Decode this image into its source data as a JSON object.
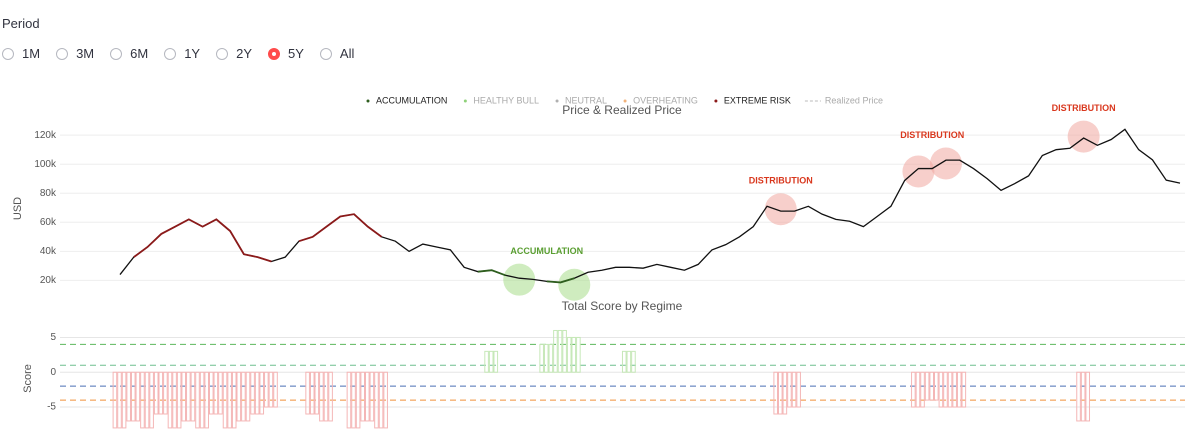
{
  "period": {
    "label": "Period",
    "options": [
      "1M",
      "3M",
      "6M",
      "1Y",
      "2Y",
      "5Y",
      "All"
    ],
    "selected": 5
  },
  "chart_data": [
    {
      "type": "line",
      "title": "Price & Realized Price",
      "y_label": "USD",
      "legend": [
        {
          "name": "ACCUMULATION",
          "color": "#2e5e1e",
          "visible": true
        },
        {
          "name": "HEALTHY BULL",
          "color": "#8fd17a",
          "visible": false
        },
        {
          "name": "NEUTRAL",
          "color": "#b0b0b0",
          "visible": false
        },
        {
          "name": "OVERHEATING",
          "color": "#f2b27a",
          "visible": false
        },
        {
          "name": "EXTREME RISK",
          "color": "#8b1a1a",
          "visible": true
        },
        {
          "name": "Realized Price",
          "color": "#bbbbbb",
          "visible": false,
          "dashed": true
        }
      ],
      "color": "#111111",
      "values": [
        24000,
        36000,
        43000,
        52000,
        57000,
        62000,
        57000,
        62000,
        54000,
        38000,
        36000,
        33000,
        36000,
        47000,
        50000,
        57000,
        64000,
        65600,
        57000,
        50000,
        47000,
        40000,
        45000,
        43000,
        41000,
        29000,
        26000,
        27000,
        23500,
        21500,
        20700,
        19300,
        18600,
        21500,
        25600,
        27000,
        29000,
        29000,
        28400,
        31000,
        29000,
        27000,
        31000,
        41000,
        44600,
        50000,
        57000,
        71000,
        67700,
        67700,
        71000,
        65600,
        62000,
        60700,
        57000,
        64000,
        71000,
        88800,
        97000,
        97000,
        102800,
        102800,
        97000,
        90000,
        82000,
        86700,
        92000,
        106000,
        110000,
        111000,
        118000,
        113000,
        117000,
        124000,
        110000,
        103000,
        89000,
        87000
      ],
      "segments": [
        {
          "series": 4,
          "from": 1,
          "to": 11
        },
        {
          "series": 4,
          "from": 13,
          "to": 19
        },
        {
          "series": 0,
          "from": 26,
          "to": 28
        },
        {
          "series": 0,
          "from": 31,
          "to": 33
        }
      ],
      "annotations": [
        {
          "text": "ACCUMULATION",
          "color": "#5a9e32",
          "fill": "#a8dc8a",
          "points": [
            [
              29,
              20500
            ],
            [
              33,
              17000
            ]
          ]
        },
        {
          "text": "DISTRIBUTION",
          "color": "#d9381e",
          "fill": "#f0a8a0",
          "points": [
            [
              48,
              69000
            ]
          ]
        },
        {
          "text": "DISTRIBUTION",
          "color": "#d9381e",
          "fill": "#f0a8a0",
          "points": [
            [
              58,
              95000
            ],
            [
              60,
              100500
            ]
          ]
        },
        {
          "text": "DISTRIBUTION",
          "color": "#d9381e",
          "fill": "#f0a8a0",
          "points": [
            [
              70,
              119000
            ]
          ]
        }
      ],
      "ylim": [
        12000,
        127000
      ],
      "yticks": [
        {
          "value": 20000,
          "label": "20k"
        },
        {
          "value": 40000,
          "label": "40k"
        },
        {
          "value": 60000,
          "label": "60k"
        },
        {
          "value": 80000,
          "label": "80k"
        },
        {
          "value": 100000,
          "label": "100k"
        },
        {
          "value": 120000,
          "label": "120k"
        }
      ],
      "grid": true
    },
    {
      "type": "bar",
      "title": "Total Score by Regime",
      "y_label": "Score",
      "negative_color": "#f4b6b6",
      "positive_color": "#c6e8b8",
      "values": [
        -8,
        -7,
        -8,
        -6,
        -8,
        -7,
        -8,
        -6,
        -8,
        -7,
        -6,
        -5,
        null,
        null,
        -6,
        -7,
        null,
        -8,
        -7,
        -8,
        null,
        null,
        null,
        null,
        null,
        null,
        null,
        3,
        null,
        null,
        null,
        4,
        6,
        5,
        null,
        null,
        null,
        3,
        null,
        null,
        null,
        null,
        null,
        null,
        null,
        null,
        null,
        null,
        -6,
        -5,
        null,
        null,
        null,
        null,
        null,
        null,
        null,
        null,
        -5,
        -4,
        -5,
        -5,
        null,
        null,
        null,
        null,
        null,
        null,
        null,
        null,
        -7,
        null,
        null,
        null,
        null,
        null,
        null,
        null
      ],
      "thresholds": [
        {
          "value": 4,
          "color": "#5cb85c"
        },
        {
          "value": 1,
          "color": "#6fbf8f"
        },
        {
          "value": -2,
          "color": "#4a6fb5"
        },
        {
          "value": -4,
          "color": "#f0903a"
        }
      ],
      "ylim": [
        -8.3,
        6.5
      ],
      "yticks": [
        5,
        0,
        -5
      ],
      "grid": true
    }
  ]
}
